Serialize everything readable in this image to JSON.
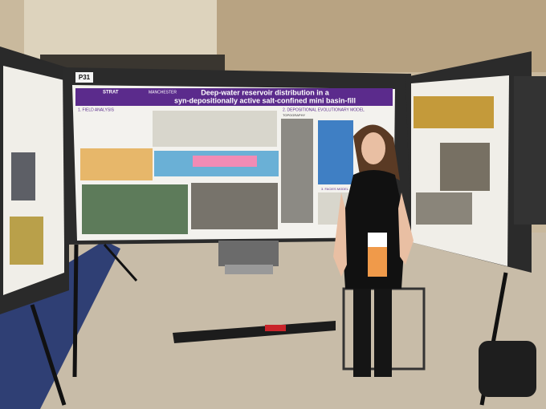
{
  "board_label": "P31",
  "poster": {
    "title_lines": [
      "Deep-water reservoir distribution in a",
      "syn-depositionally active salt-confined mini basin-fill"
    ],
    "logos": [
      "STRAT",
      "MANCHESTER"
    ],
    "sections": [
      "1. FIELD ANALYSIS",
      "2. DEPOSITIONAL EVOLUTIONARY MODEL",
      "TOPOGRAPHY",
      "3. FACIES MODEL"
    ]
  }
}
